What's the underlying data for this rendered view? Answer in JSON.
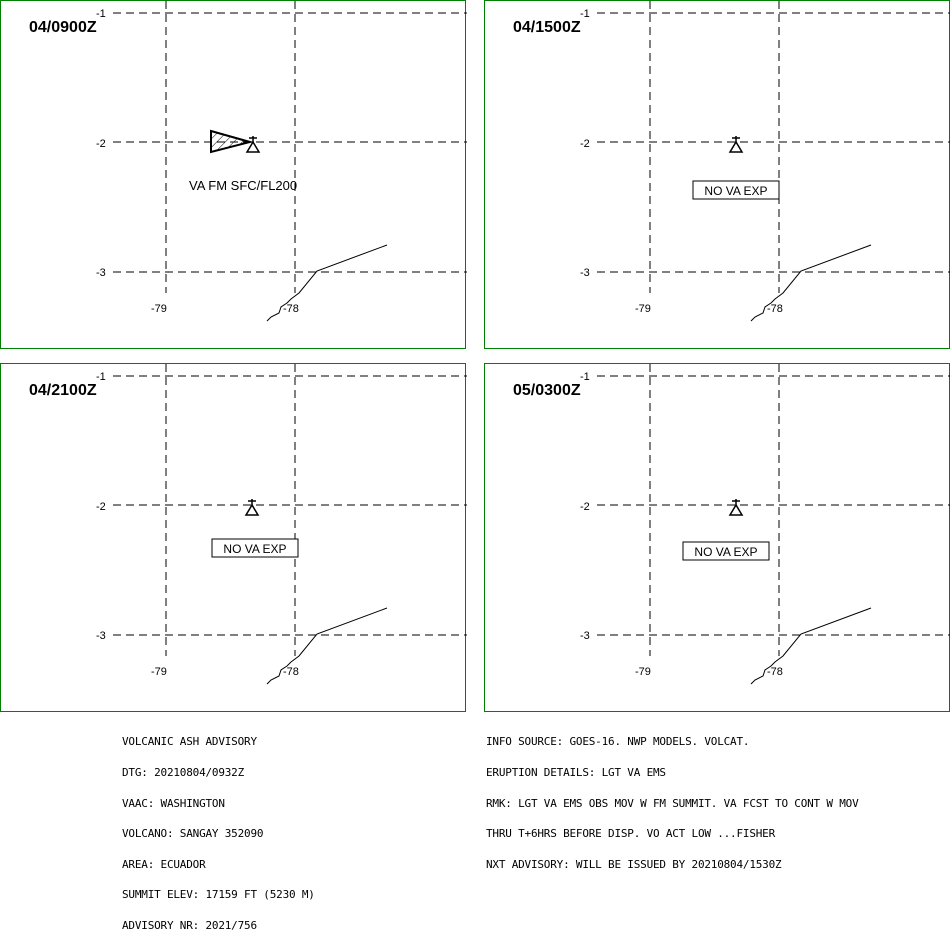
{
  "panels": [
    {
      "time": "04/0900Z",
      "ash_label": "VA FM SFC/FL200",
      "no_va_label": "",
      "lat_ticks": [
        "-1",
        "-2",
        "-3"
      ],
      "lon_ticks": [
        "-79",
        "-78"
      ]
    },
    {
      "time": "04/1500Z",
      "ash_label": "",
      "no_va_label": "NO VA EXP",
      "lat_ticks": [
        "-1",
        "-2",
        "-3"
      ],
      "lon_ticks": [
        "-79",
        "-78"
      ]
    },
    {
      "time": "04/2100Z",
      "ash_label": "",
      "no_va_label": "NO VA EXP",
      "lat_ticks": [
        "-1",
        "-2",
        "-3"
      ],
      "lon_ticks": [
        "-79",
        "-78"
      ]
    },
    {
      "time": "05/0300Z",
      "ash_label": "",
      "no_va_label": "NO VA EXP",
      "lat_ticks": [
        "-1",
        "-2",
        "-3"
      ],
      "lon_ticks": [
        "-79",
        "-78"
      ]
    }
  ],
  "advisory_left": [
    "VOLCANIC ASH ADVISORY",
    "DTG: 20210804/0932Z",
    "VAAC: WASHINGTON",
    "VOLCANO: SANGAY 352090",
    "AREA: ECUADOR",
    "SUMMIT ELEV: 17159 FT (5230 M)",
    "ADVISORY NR: 2021/756"
  ],
  "advisory_right": [
    "INFO SOURCE: GOES-16. NWP MODELS. VOLCAT.",
    "ERUPTION DETAILS: LGT VA EMS",
    "RMK: LGT VA EMS OBS MOV W FM SUMMIT. VA FCST TO CONT W MOV",
    "THRU T+6HRS BEFORE DISP. VO ACT LOW ...FISHER",
    "NXT ADVISORY: WILL BE ISSUED BY 20210804/1530Z"
  ],
  "colors": {
    "frame": "#008000",
    "ink": "#000000"
  }
}
